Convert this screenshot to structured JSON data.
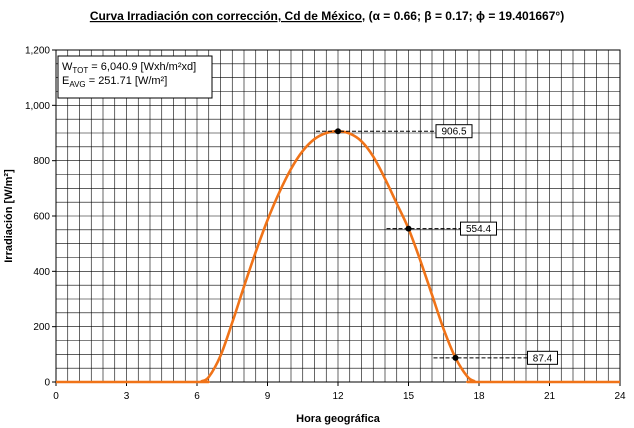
{
  "title": {
    "main": "Curva Irradiación con corrección, Cd de México",
    "params": ", (α = 0.66; β = 0.17; ϕ = 19.401667°)"
  },
  "legend": {
    "w_symbol": "W",
    "w_sub": "TOT",
    "w_text": " = 6,040.9 [Wxh/m²xd]",
    "e_symbol": "E",
    "e_sub": "AVG",
    "e_text": " = 251.71 [W/m²]"
  },
  "chart_data": {
    "type": "line",
    "xlabel": "Hora geográfica",
    "ylabel": "Irradiación [W/m²]",
    "xlim": [
      0,
      24
    ],
    "ylim": [
      0,
      1200
    ],
    "xticks": [
      0,
      3,
      6,
      9,
      12,
      15,
      18,
      21,
      24
    ],
    "xtick_labels": [
      "0",
      "3",
      "6",
      "9",
      "12",
      "15",
      "18",
      "21",
      "24"
    ],
    "yticks": [
      0,
      200,
      400,
      600,
      800,
      1000,
      1200
    ],
    "ytick_labels": [
      "0",
      "200",
      "400",
      "600",
      "800",
      "1,000",
      "1,200"
    ],
    "grid": true,
    "line_color": "#f07318",
    "series": [
      {
        "x": [
          0,
          6,
          6.2,
          6.5,
          7,
          7.5,
          8,
          8.5,
          9,
          9.5,
          10,
          10.5,
          11,
          11.5,
          12,
          12.5,
          13,
          13.5,
          14,
          14.5,
          15,
          15.5,
          16,
          16.5,
          17,
          17.5,
          17.8,
          18,
          24
        ],
        "y": [
          0,
          0,
          3,
          18,
          95,
          215,
          345,
          470,
          585,
          685,
          770,
          835,
          878,
          900,
          906.5,
          898,
          870,
          815,
          735,
          645,
          554.4,
          440,
          315,
          190,
          87.4,
          20,
          3,
          0,
          0
        ]
      }
    ],
    "annotations": [
      {
        "x": 12,
        "y": 906.5,
        "label": "906.5"
      },
      {
        "x": 15,
        "y": 554.4,
        "label": "554.4"
      },
      {
        "x": 17,
        "y": 87.4,
        "label": "87.4"
      }
    ]
  }
}
